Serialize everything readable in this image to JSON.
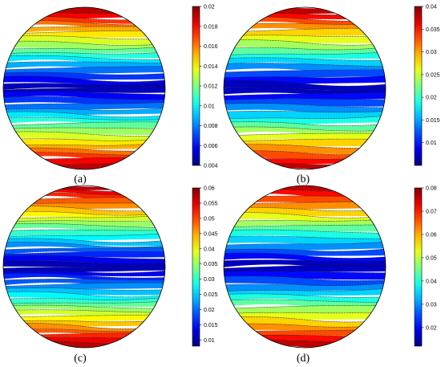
{
  "chart_data": [
    {
      "type": "heatmap",
      "panel_label": "(a)",
      "colormap": "jet",
      "clim": [
        0.004,
        0.02
      ],
      "colorbar_ticks": [
        "0.02",
        "0.018",
        "0.016",
        "0.014",
        "0.012",
        "0.01",
        "0.008",
        "0.006",
        "0.004"
      ],
      "pattern": "horizontal contour bands on a circular domain, minimum along the horizontal center line, maximum at top and bottom edges",
      "contour_levels": 16
    },
    {
      "type": "heatmap",
      "panel_label": "(b)",
      "colormap": "jet",
      "clim": [
        0.005,
        0.04
      ],
      "colorbar_ticks": [
        "0.04",
        "0.035",
        "0.03",
        "0.025",
        "0.02",
        "0.015",
        "0.01"
      ],
      "pattern": "horizontal contour bands on a circular domain, minimum along the horizontal center line, maximum at top and bottom edges",
      "contour_levels": 14
    },
    {
      "type": "heatmap",
      "panel_label": "(c)",
      "colormap": "jet",
      "clim": [
        0.008,
        0.06
      ],
      "colorbar_ticks": [
        "0.06",
        "0.055",
        "0.05",
        "0.045",
        "0.04",
        "0.035",
        "0.03",
        "0.025",
        "0.02",
        "0.015",
        "0.01"
      ],
      "pattern": "horizontal contour bands on a circular domain, minimum along the horizontal center line, maximum at top and bottom edges",
      "contour_levels": 18
    },
    {
      "type": "heatmap",
      "panel_label": "(d)",
      "colormap": "jet",
      "clim": [
        0.012,
        0.08
      ],
      "colorbar_ticks": [
        "0.08",
        "0.07",
        "0.06",
        "0.05",
        "0.04",
        "0.03",
        "0.02"
      ],
      "pattern": "horizontal contour bands on a circular domain, minimum along the horizontal center line, maximum at top and bottom edges",
      "contour_levels": 14
    }
  ]
}
